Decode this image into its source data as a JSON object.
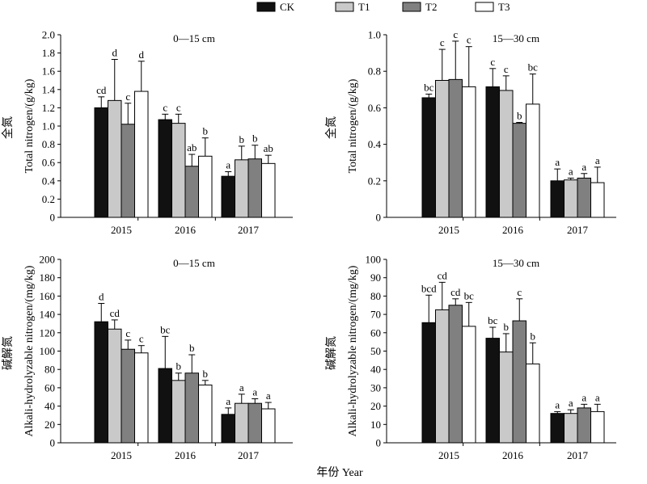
{
  "legend": {
    "items": [
      {
        "label": "CK",
        "color": "#111111"
      },
      {
        "label": "T1",
        "color": "#c9c9c9"
      },
      {
        "label": "T2",
        "color": "#808080"
      },
      {
        "label": "T3",
        "color": "#ffffff"
      }
    ]
  },
  "xlabel": "年份 Year",
  "chart_data": [
    {
      "type": "bar",
      "title": "0—15 cm",
      "ylabel_cn": "全氮",
      "ylabel_en": "Total nitrogen/(g/kg)",
      "ylim": [
        0,
        2.0
      ],
      "yticks": [
        "0",
        "0.2",
        "0.4",
        "0.6",
        "0.8",
        "1.0",
        "1.2",
        "1.4",
        "1.6",
        "1.8",
        "2.0"
      ],
      "categories": [
        "2015",
        "2016",
        "2017"
      ],
      "series": [
        {
          "name": "CK",
          "values": [
            1.2,
            1.07,
            0.45
          ],
          "errors": [
            0.12,
            0.06,
            0.05
          ],
          "labels": [
            "cd",
            "c",
            "a"
          ]
        },
        {
          "name": "T1",
          "values": [
            1.28,
            1.03,
            0.63
          ],
          "errors": [
            0.45,
            0.1,
            0.15
          ],
          "labels": [
            "d",
            "c",
            "b"
          ]
        },
        {
          "name": "T2",
          "values": [
            1.02,
            0.56,
            0.64
          ],
          "errors": [
            0.23,
            0.13,
            0.15
          ],
          "labels": [
            "c",
            "ab",
            "b"
          ]
        },
        {
          "name": "T3",
          "values": [
            1.38,
            0.67,
            0.59
          ],
          "errors": [
            0.33,
            0.2,
            0.09
          ],
          "labels": [
            "d",
            "b",
            "ab"
          ]
        }
      ]
    },
    {
      "type": "bar",
      "title": "15—30 cm",
      "ylabel_cn": "全氮",
      "ylabel_en": "Total nitrogen/(g/kg)",
      "ylim": [
        0,
        1.0
      ],
      "yticks": [
        "0",
        "0.2",
        "0.4",
        "0.6",
        "0.8",
        "1.0"
      ],
      "categories": [
        "2015",
        "2016",
        "2017"
      ],
      "series": [
        {
          "name": "CK",
          "values": [
            0.655,
            0.715,
            0.2
          ],
          "errors": [
            0.02,
            0.1,
            0.065
          ],
          "labels": [
            "bc",
            "c",
            "a"
          ]
        },
        {
          "name": "T1",
          "values": [
            0.75,
            0.695,
            0.205
          ],
          "errors": [
            0.17,
            0.08,
            0.01
          ],
          "labels": [
            "c",
            "c",
            "a"
          ]
        },
        {
          "name": "T2",
          "values": [
            0.755,
            0.515,
            0.215
          ],
          "errors": [
            0.21,
            0.005,
            0.025
          ],
          "labels": [
            "c",
            "b",
            "a"
          ]
        },
        {
          "name": "T3",
          "values": [
            0.715,
            0.62,
            0.19
          ],
          "errors": [
            0.22,
            0.165,
            0.085
          ],
          "labels": [
            "c",
            "bc",
            "a"
          ]
        }
      ]
    },
    {
      "type": "bar",
      "title": "0—15 cm",
      "ylabel_cn": "碱解氮",
      "ylabel_en": "Alkali-hydrolyzable nitrogen/(mg/kg)",
      "ylim": [
        0,
        200
      ],
      "yticks": [
        "0",
        "20",
        "40",
        "60",
        "80",
        "100",
        "120",
        "140",
        "160",
        "180",
        "200"
      ],
      "categories": [
        "2015",
        "2016",
        "2017"
      ],
      "series": [
        {
          "name": "CK",
          "values": [
            132,
            81,
            31
          ],
          "errors": [
            20,
            35,
            7
          ],
          "labels": [
            "d",
            "bc",
            "a"
          ]
        },
        {
          "name": "T1",
          "values": [
            124,
            68,
            43
          ],
          "errors": [
            10,
            8,
            10
          ],
          "labels": [
            "cd",
            "b",
            "a"
          ]
        },
        {
          "name": "T2",
          "values": [
            102,
            76,
            43
          ],
          "errors": [
            10,
            20,
            5
          ],
          "labels": [
            "c",
            "b",
            "a"
          ]
        },
        {
          "name": "T3",
          "values": [
            98,
            63,
            37
          ],
          "errors": [
            8,
            5,
            7
          ],
          "labels": [
            "c",
            "b",
            "a"
          ]
        }
      ]
    },
    {
      "type": "bar",
      "title": "15—30 cm",
      "ylabel_cn": "碱解氮",
      "ylabel_en": "Alkali-hydrolyzable nitrogen/(mg/kg)",
      "ylim": [
        0,
        100
      ],
      "yticks": [
        "0",
        "10",
        "20",
        "30",
        "40",
        "50",
        "60",
        "70",
        "80",
        "90",
        "100"
      ],
      "categories": [
        "2015",
        "2016",
        "2017"
      ],
      "series": [
        {
          "name": "CK",
          "values": [
            65.5,
            57,
            16
          ],
          "errors": [
            15,
            6,
            1
          ],
          "labels": [
            "bcd",
            "bc",
            "a"
          ]
        },
        {
          "name": "T1",
          "values": [
            72.5,
            49.5,
            16
          ],
          "errors": [
            15,
            10,
            2
          ],
          "labels": [
            "cd",
            "b",
            "a"
          ]
        },
        {
          "name": "T2",
          "values": [
            75,
            66.5,
            19
          ],
          "errors": [
            3.5,
            12,
            2
          ],
          "labels": [
            "cd",
            "c",
            "a"
          ]
        },
        {
          "name": "T3",
          "values": [
            63.5,
            43,
            17
          ],
          "errors": [
            13,
            11.5,
            4
          ],
          "labels": [
            "bc",
            "b",
            "a"
          ]
        }
      ]
    }
  ]
}
